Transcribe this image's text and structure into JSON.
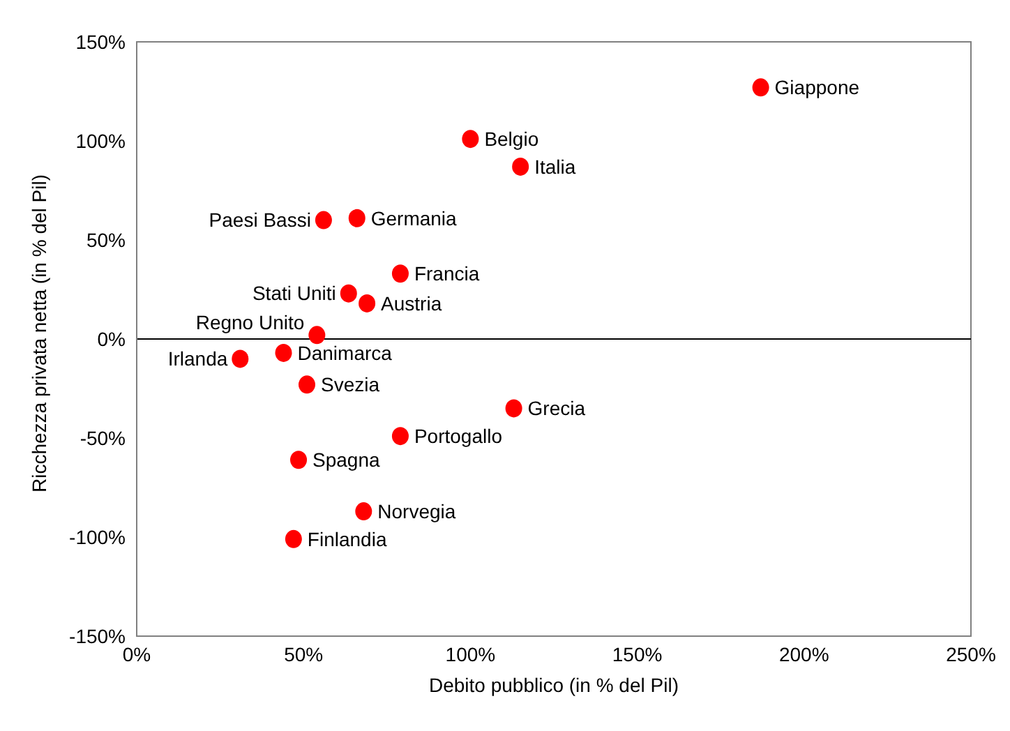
{
  "chart_data": {
    "type": "scatter",
    "xlabel": "Debito pubblico (in % del Pil)",
    "ylabel": "Ricchezza privata netta (in % del Pil)",
    "x": [
      187,
      100,
      115,
      56,
      66,
      79,
      63.5,
      69,
      54,
      31,
      44,
      51,
      113,
      79,
      48.5,
      68,
      47
    ],
    "series": [
      {
        "color": "#ff0000",
        "values": [
          127,
          101,
          87,
          60,
          61,
          33,
          23,
          18,
          2,
          -10,
          -7,
          -23,
          -35,
          -49,
          -61,
          -87,
          -101
        ]
      }
    ],
    "marker": "circle",
    "xlim": [
      0,
      250
    ],
    "ylim": [
      -150,
      150
    ],
    "xticks": [
      {
        "value": 0,
        "label": "0%"
      },
      {
        "value": 50,
        "label": "50%"
      },
      {
        "value": 100,
        "label": "100%"
      },
      {
        "value": 150,
        "label": "150%"
      },
      {
        "value": 200,
        "label": "200%"
      },
      {
        "value": 250,
        "label": "250%"
      }
    ],
    "yticks": [
      {
        "value": -150,
        "label": "-150%"
      },
      {
        "value": -100,
        "label": "-100%"
      },
      {
        "value": -50,
        "label": "-50%"
      },
      {
        "value": 0,
        "label": "0%"
      },
      {
        "value": 50,
        "label": "50%"
      },
      {
        "value": 100,
        "label": "100%"
      },
      {
        "value": 150,
        "label": "150%"
      }
    ],
    "ref_lines": [
      {
        "axis": "y",
        "value": 0,
        "color": "#000000"
      }
    ],
    "annotations": [
      {
        "text": "Giappone",
        "x": 187,
        "y": 127
      },
      {
        "text": "Belgio",
        "x": 100,
        "y": 101
      },
      {
        "text": "Italia",
        "x": 115,
        "y": 87
      },
      {
        "text": "Paesi Bassi",
        "x": 56,
        "y": 60
      },
      {
        "text": "Germania",
        "x": 66,
        "y": 61
      },
      {
        "text": "Francia",
        "x": 79,
        "y": 33
      },
      {
        "text": "Stati Uniti",
        "x": 63.5,
        "y": 23
      },
      {
        "text": "Austria",
        "x": 69,
        "y": 18
      },
      {
        "text": "Regno Unito",
        "x": 54,
        "y": 2
      },
      {
        "text": "Irlanda",
        "x": 31,
        "y": -10
      },
      {
        "text": "Danimarca",
        "x": 44,
        "y": -7
      },
      {
        "text": "Svezia",
        "x": 51,
        "y": -23
      },
      {
        "text": "Grecia",
        "x": 113,
        "y": -35
      },
      {
        "text": "Portogallo",
        "x": 79,
        "y": -49
      },
      {
        "text": "Spagna",
        "x": 48.5,
        "y": -61
      },
      {
        "text": "Norvegia",
        "x": 68,
        "y": -87
      },
      {
        "text": "Finlandia",
        "x": 47,
        "y": -101
      }
    ]
  }
}
